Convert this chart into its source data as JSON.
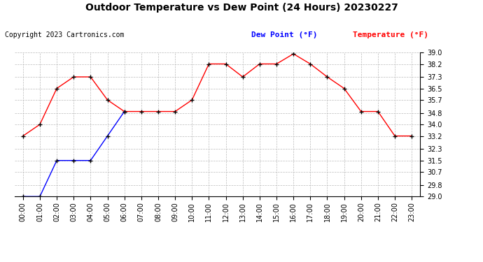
{
  "title": "Outdoor Temperature vs Dew Point (24 Hours) 20230227",
  "copyright": "Copyright 2023 Cartronics.com",
  "legend_dew": "Dew Point (°F)",
  "legend_temp": "Temperature (°F)",
  "hours": [
    "00:00",
    "01:00",
    "02:00",
    "03:00",
    "04:00",
    "05:00",
    "06:00",
    "07:00",
    "08:00",
    "09:00",
    "10:00",
    "11:00",
    "12:00",
    "13:00",
    "14:00",
    "15:00",
    "16:00",
    "17:00",
    "18:00",
    "19:00",
    "20:00",
    "21:00",
    "22:00",
    "23:00"
  ],
  "temperature": [
    33.2,
    34.0,
    36.5,
    37.3,
    37.3,
    35.7,
    34.9,
    34.9,
    34.9,
    34.9,
    35.7,
    38.2,
    38.2,
    37.3,
    38.2,
    38.2,
    38.9,
    38.2,
    37.3,
    36.5,
    34.9,
    34.9,
    33.2,
    33.2
  ],
  "dew_point": [
    29.0,
    29.0,
    31.5,
    31.5,
    31.5,
    33.2,
    34.9,
    null,
    null,
    null,
    null,
    null,
    null,
    null,
    null,
    null,
    null,
    null,
    null,
    null,
    null,
    null,
    null,
    null
  ],
  "temp_color": "#ff0000",
  "dew_color": "#0000ff",
  "ylim_min": 29.0,
  "ylim_max": 39.0,
  "yticks": [
    29.0,
    29.8,
    30.7,
    31.5,
    32.3,
    33.2,
    34.0,
    34.8,
    35.7,
    36.5,
    37.3,
    38.2,
    39.0
  ],
  "bg_color": "#ffffff",
  "grid_color": "#bbbbbb",
  "marker_color": "#000000",
  "marker_size": 5,
  "line_width": 1.0,
  "title_fontsize": 10,
  "copyright_fontsize": 7,
  "legend_fontsize": 8,
  "tick_fontsize": 7
}
